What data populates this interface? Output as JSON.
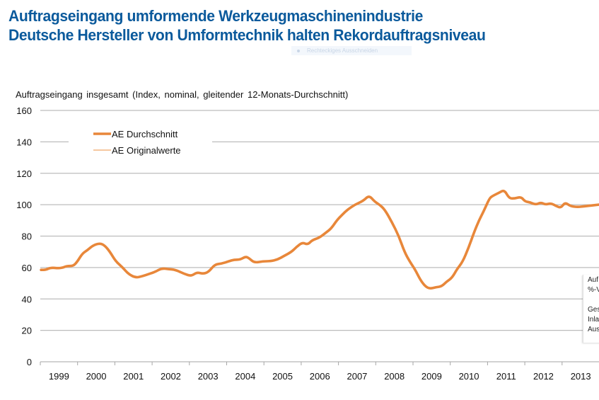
{
  "header": {
    "title_line1": "Auftragseingang umformende Werkzeugmaschinenindustrie",
    "title_line2": "Deutsche Hersteller von Umformtechnik halten Rekordauftragsniveau",
    "overlay_tooltip": "Rechteckiges Ausschneiden"
  },
  "side_box": {
    "lines": [
      "Auf",
      "%-V",
      "",
      "Ges",
      "Inla",
      "Aus"
    ]
  },
  "chart_data": {
    "type": "line",
    "title": "Auftragseingang umformende Werkzeugmaschinenindustrie",
    "subtitle": "Auftragseingang insgesamt (Index, nominal, gleitender 12-Monats-Durchschnitt)",
    "xlabel": "",
    "ylabel": "",
    "ylim": [
      0,
      160
    ],
    "yticks": [
      0,
      20,
      40,
      60,
      80,
      100,
      120,
      140,
      160
    ],
    "xlim": [
      1999.0,
      2014.0
    ],
    "x_categories": [
      "1999",
      "2000",
      "2001",
      "2002",
      "2003",
      "2004",
      "2005",
      "2006",
      "2007",
      "2008",
      "2009",
      "2010",
      "2011",
      "2012",
      "2013"
    ],
    "grid": true,
    "legend_position": "top-left",
    "legend": [
      {
        "name": "AE Durchschnitt",
        "style": "thick",
        "color": "#e8873a"
      },
      {
        "name": "AE Originalwerte",
        "style": "thin",
        "color": "#f0a868"
      }
    ],
    "series": [
      {
        "name": "AE Durchschnitt",
        "color": "#e8873a",
        "x": [
          1999.02,
          1999.15,
          1999.28,
          1999.49,
          1999.62,
          1999.71,
          1999.89,
          2000.0,
          2000.13,
          2000.26,
          2000.41,
          2000.6,
          2000.73,
          2000.87,
          2001.02,
          2001.21,
          2001.36,
          2001.55,
          2001.74,
          2001.93,
          2002.06,
          2002.25,
          2002.44,
          2002.63,
          2002.86,
          2003.05,
          2003.2,
          2003.36,
          2003.51,
          2003.68,
          2003.87,
          2004.06,
          2004.2,
          2004.36,
          2004.51,
          2004.6,
          2004.74,
          2004.98,
          2005.17,
          2005.36,
          2005.55,
          2005.74,
          2005.87,
          2006.03,
          2006.17,
          2006.3,
          2006.49,
          2006.68,
          2006.81,
          2006.97,
          2007.12,
          2007.25,
          2007.44,
          2007.67,
          2007.82,
          2007.97,
          2008.1,
          2008.24,
          2008.43,
          2008.62,
          2008.77,
          2008.92,
          2009.05,
          2009.2,
          2009.33,
          2009.45,
          2009.62,
          2009.77,
          2009.9,
          2010.05,
          2010.18,
          2010.33,
          2010.49,
          2010.64,
          2010.77,
          2010.9,
          2011.05,
          2011.13,
          2011.3,
          2011.45,
          2011.58,
          2011.73,
          2011.9,
          2012.01,
          2012.14,
          2012.3,
          2012.43,
          2012.56,
          2012.7,
          2012.85,
          2012.97,
          2013.08,
          2013.23,
          2013.42,
          2013.61,
          2013.99
        ],
        "values": [
          58.5,
          58.5,
          60,
          59.5,
          60,
          61,
          61,
          64,
          69,
          71,
          74,
          75.5,
          74,
          70,
          64,
          60,
          56,
          53.5,
          54.5,
          56,
          57,
          59.5,
          59,
          58.5,
          56,
          54.5,
          57,
          56,
          57,
          62,
          62.5,
          64,
          65,
          65,
          67,
          66,
          63,
          64,
          64,
          65,
          67.5,
          70,
          73,
          76,
          74.5,
          77.5,
          79,
          82.5,
          85,
          90.5,
          94,
          97,
          100,
          102.5,
          106,
          102,
          100,
          97,
          89,
          80,
          70,
          63.5,
          59,
          52,
          48,
          46.5,
          47.5,
          48,
          51,
          53.5,
          59,
          63.5,
          72.5,
          82.5,
          90,
          96,
          104,
          105.5,
          107.5,
          109.5,
          104,
          104,
          105,
          102,
          101.5,
          100,
          101.5,
          100,
          101,
          99,
          98,
          101.5,
          99,
          98.5,
          99,
          100
        ]
      }
    ]
  }
}
